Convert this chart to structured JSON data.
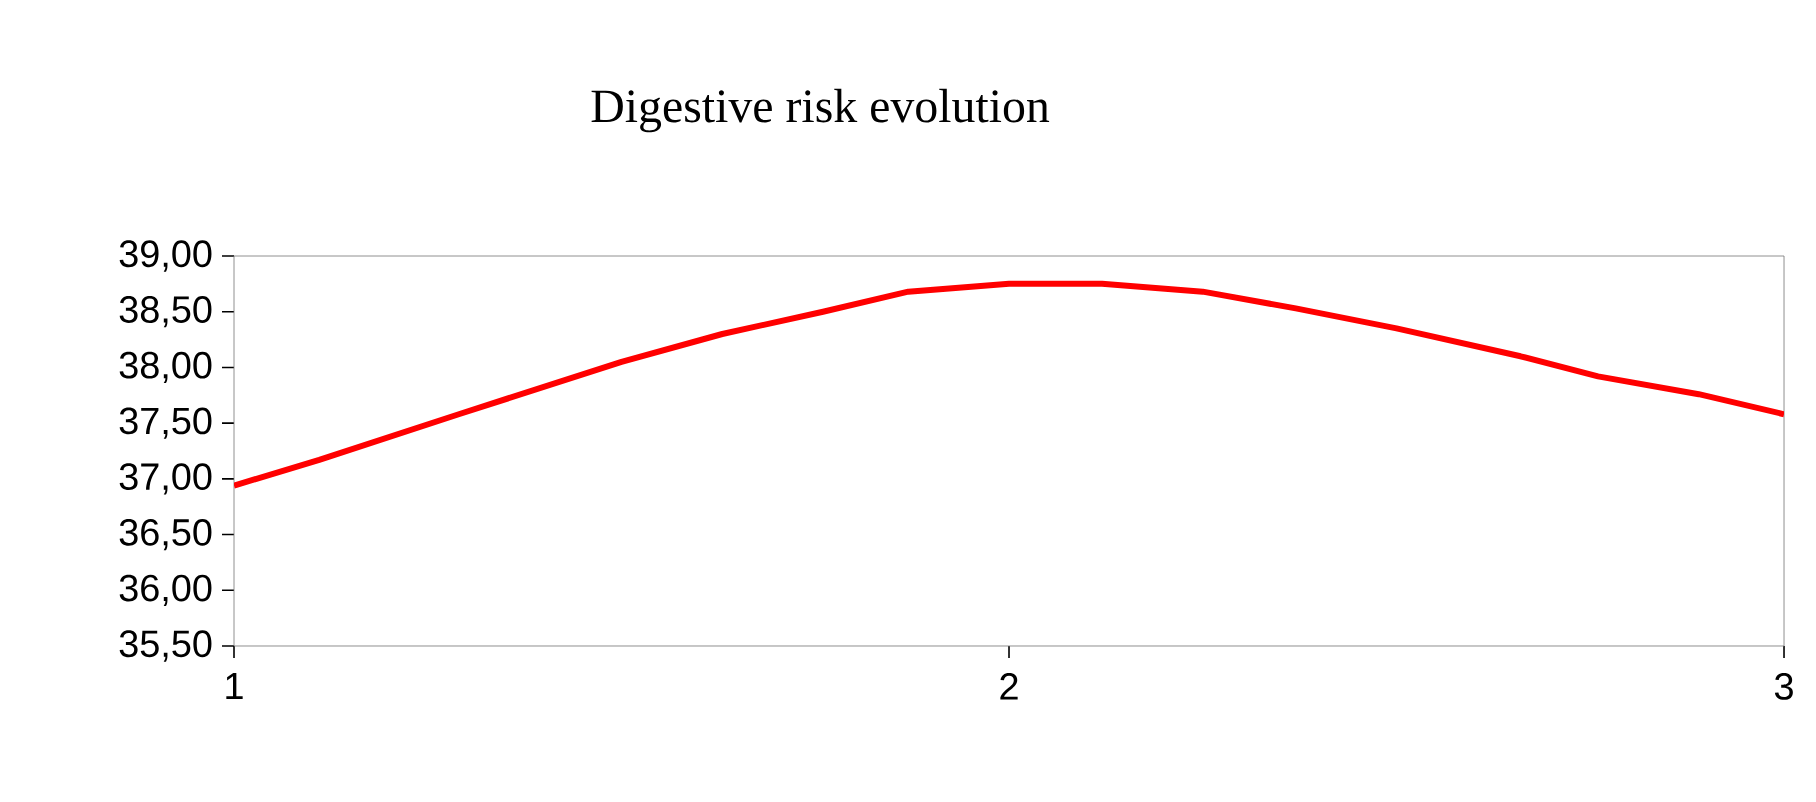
{
  "chart_data": {
    "type": "line",
    "title": "Digestive risk evolution",
    "x": [
      1,
      1.11,
      1.29,
      1.5,
      1.63,
      1.76,
      1.87,
      2,
      2.12,
      2.25,
      2.37,
      2.5,
      2.66,
      2.76,
      2.89,
      3
    ],
    "series": [
      {
        "color": "#ff0000",
        "values": [
          36.94,
          37.17,
          37.58,
          38.05,
          38.3,
          38.5,
          38.68,
          38.75,
          38.75,
          38.68,
          38.53,
          38.35,
          38.1,
          37.92,
          37.76,
          37.58
        ]
      }
    ],
    "xlim": [
      1,
      3
    ],
    "xticks": [
      1,
      2,
      3
    ],
    "ylim": [
      35.5,
      39
    ],
    "yticks": [
      {
        "value": 35.5,
        "label": "35,50"
      },
      {
        "value": 36,
        "label": "36,00"
      },
      {
        "value": 36.5,
        "label": "36,50"
      },
      {
        "value": 37,
        "label": "37,00"
      },
      {
        "value": 37.5,
        "label": "37,50"
      },
      {
        "value": 38,
        "label": "38,00"
      },
      {
        "value": 38.5,
        "label": "38,50"
      },
      {
        "value": 39,
        "label": "39,00"
      }
    ],
    "marker": "none",
    "line_style": "solid"
  }
}
